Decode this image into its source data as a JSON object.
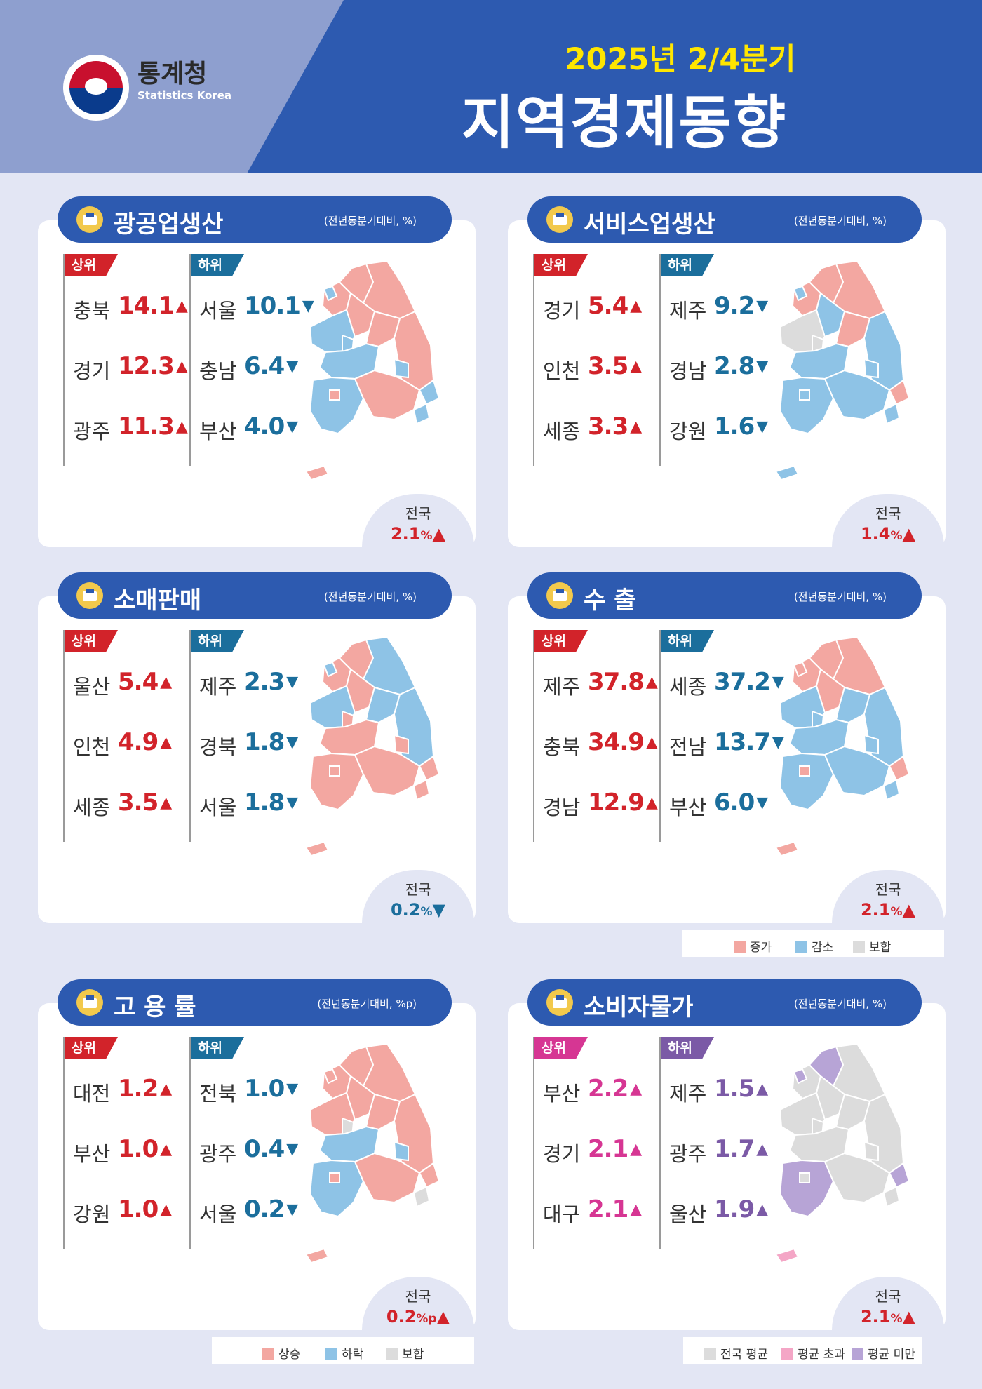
{
  "header": {
    "org_ko": "통계청",
    "org_en": "Statistics Korea",
    "period": "2025년 2/4분기",
    "title": "지역경제동향"
  },
  "colors": {
    "increase": "#f3a7a1",
    "decrease": "#8ec3e6",
    "flat": "#dcdcdc",
    "price_national": "#dcdcdc",
    "price_above": "#f4a6c6",
    "price_below": "#b7a4d6",
    "up_red": "#d2232a",
    "down_blue": "#1b6e9c",
    "up_pink": "#d63693",
    "up_purple": "#7b5aa6"
  },
  "panels": [
    {
      "title": "광공업생산",
      "icon": "factory-icon",
      "unit": "(전년동분기대비, %)",
      "top_label": "상위",
      "bottom_label": "하위",
      "top": [
        {
          "region": "충북",
          "value": "14.1",
          "arrow": "▲"
        },
        {
          "region": "경기",
          "value": "12.3",
          "arrow": "▲"
        },
        {
          "region": "광주",
          "value": "11.3",
          "arrow": "▲"
        }
      ],
      "bottom": [
        {
          "region": "서울",
          "value": "10.1",
          "arrow": "▼"
        },
        {
          "region": "충남",
          "value": "6.4",
          "arrow": "▼"
        },
        {
          "region": "부산",
          "value": "4.0",
          "arrow": "▼"
        }
      ],
      "national_label": "전국",
      "national_value": "2.1",
      "national_unit": "%",
      "national_arrow": "▲"
    },
    {
      "title": "서비스업생산",
      "icon": "delivery-worker-icon",
      "unit": "(전년동분기대비, %)",
      "top_label": "상위",
      "bottom_label": "하위",
      "top": [
        {
          "region": "경기",
          "value": "5.4",
          "arrow": "▲"
        },
        {
          "region": "인천",
          "value": "3.5",
          "arrow": "▲"
        },
        {
          "region": "세종",
          "value": "3.3",
          "arrow": "▲"
        }
      ],
      "bottom": [
        {
          "region": "제주",
          "value": "9.2",
          "arrow": "▼"
        },
        {
          "region": "경남",
          "value": "2.8",
          "arrow": "▼"
        },
        {
          "region": "강원",
          "value": "1.6",
          "arrow": "▼"
        }
      ],
      "national_label": "전국",
      "national_value": "1.4",
      "national_unit": "%",
      "national_arrow": "▲"
    },
    {
      "title": "소매판매",
      "icon": "shopping-bag-icon",
      "unit": "(전년동분기대비, %)",
      "top_label": "상위",
      "bottom_label": "하위",
      "top": [
        {
          "region": "울산",
          "value": "5.4",
          "arrow": "▲"
        },
        {
          "region": "인천",
          "value": "4.9",
          "arrow": "▲"
        },
        {
          "region": "세종",
          "value": "3.5",
          "arrow": "▲"
        }
      ],
      "bottom": [
        {
          "region": "제주",
          "value": "2.3",
          "arrow": "▼"
        },
        {
          "region": "경북",
          "value": "1.8",
          "arrow": "▼"
        },
        {
          "region": "서울",
          "value": "1.8",
          "arrow": "▼"
        }
      ],
      "national_label": "전국",
      "national_value": "0.2",
      "national_unit": "%",
      "national_arrow": "▼"
    },
    {
      "title": "수 출",
      "icon": "cargo-ship-icon",
      "unit": "(전년동분기대비, %)",
      "top_label": "상위",
      "bottom_label": "하위",
      "top": [
        {
          "region": "제주",
          "value": "37.8",
          "arrow": "▲"
        },
        {
          "region": "충북",
          "value": "34.9",
          "arrow": "▲"
        },
        {
          "region": "경남",
          "value": "12.9",
          "arrow": "▲"
        }
      ],
      "bottom": [
        {
          "region": "세종",
          "value": "37.2",
          "arrow": "▼"
        },
        {
          "region": "전남",
          "value": "13.7",
          "arrow": "▼"
        },
        {
          "region": "부산",
          "value": "6.0",
          "arrow": "▼"
        }
      ],
      "national_label": "전국",
      "national_value": "2.1",
      "national_unit": "%",
      "national_arrow": "▲"
    },
    {
      "title": "고 용 률",
      "icon": "office-worker-icon",
      "unit": "(전년동분기대비, %p)",
      "top_label": "상위",
      "bottom_label": "하위",
      "top": [
        {
          "region": "대전",
          "value": "1.2",
          "arrow": "▲"
        },
        {
          "region": "부산",
          "value": "1.0",
          "arrow": "▲"
        },
        {
          "region": "강원",
          "value": "1.0",
          "arrow": "▲"
        }
      ],
      "bottom": [
        {
          "region": "전북",
          "value": "1.0",
          "arrow": "▼"
        },
        {
          "region": "광주",
          "value": "0.4",
          "arrow": "▼"
        },
        {
          "region": "서울",
          "value": "0.2",
          "arrow": "▼"
        }
      ],
      "national_label": "전국",
      "national_value": "0.2",
      "national_unit": "%p",
      "national_arrow": "▲"
    },
    {
      "title": "소비자물가",
      "icon": "shopping-basket-icon",
      "unit": "(전년동분기대비, %)",
      "top_label": "상위",
      "bottom_label": "하위",
      "top": [
        {
          "region": "부산",
          "value": "2.2",
          "arrow": "▲"
        },
        {
          "region": "경기",
          "value": "2.1",
          "arrow": "▲"
        },
        {
          "region": "대구",
          "value": "2.1",
          "arrow": "▲"
        }
      ],
      "bottom": [
        {
          "region": "제주",
          "value": "1.5",
          "arrow": "▲"
        },
        {
          "region": "광주",
          "value": "1.7",
          "arrow": "▲"
        },
        {
          "region": "울산",
          "value": "1.9",
          "arrow": "▲"
        }
      ],
      "national_label": "전국",
      "national_value": "2.1",
      "national_unit": "%",
      "national_arrow": "▲"
    }
  ],
  "legend_change": [
    "증가",
    "감소",
    "보합"
  ],
  "legend_rate": [
    "상승",
    "하락",
    "보합"
  ],
  "legend_price": [
    "전국 평균",
    "평균 초과",
    "평균 미만"
  ]
}
